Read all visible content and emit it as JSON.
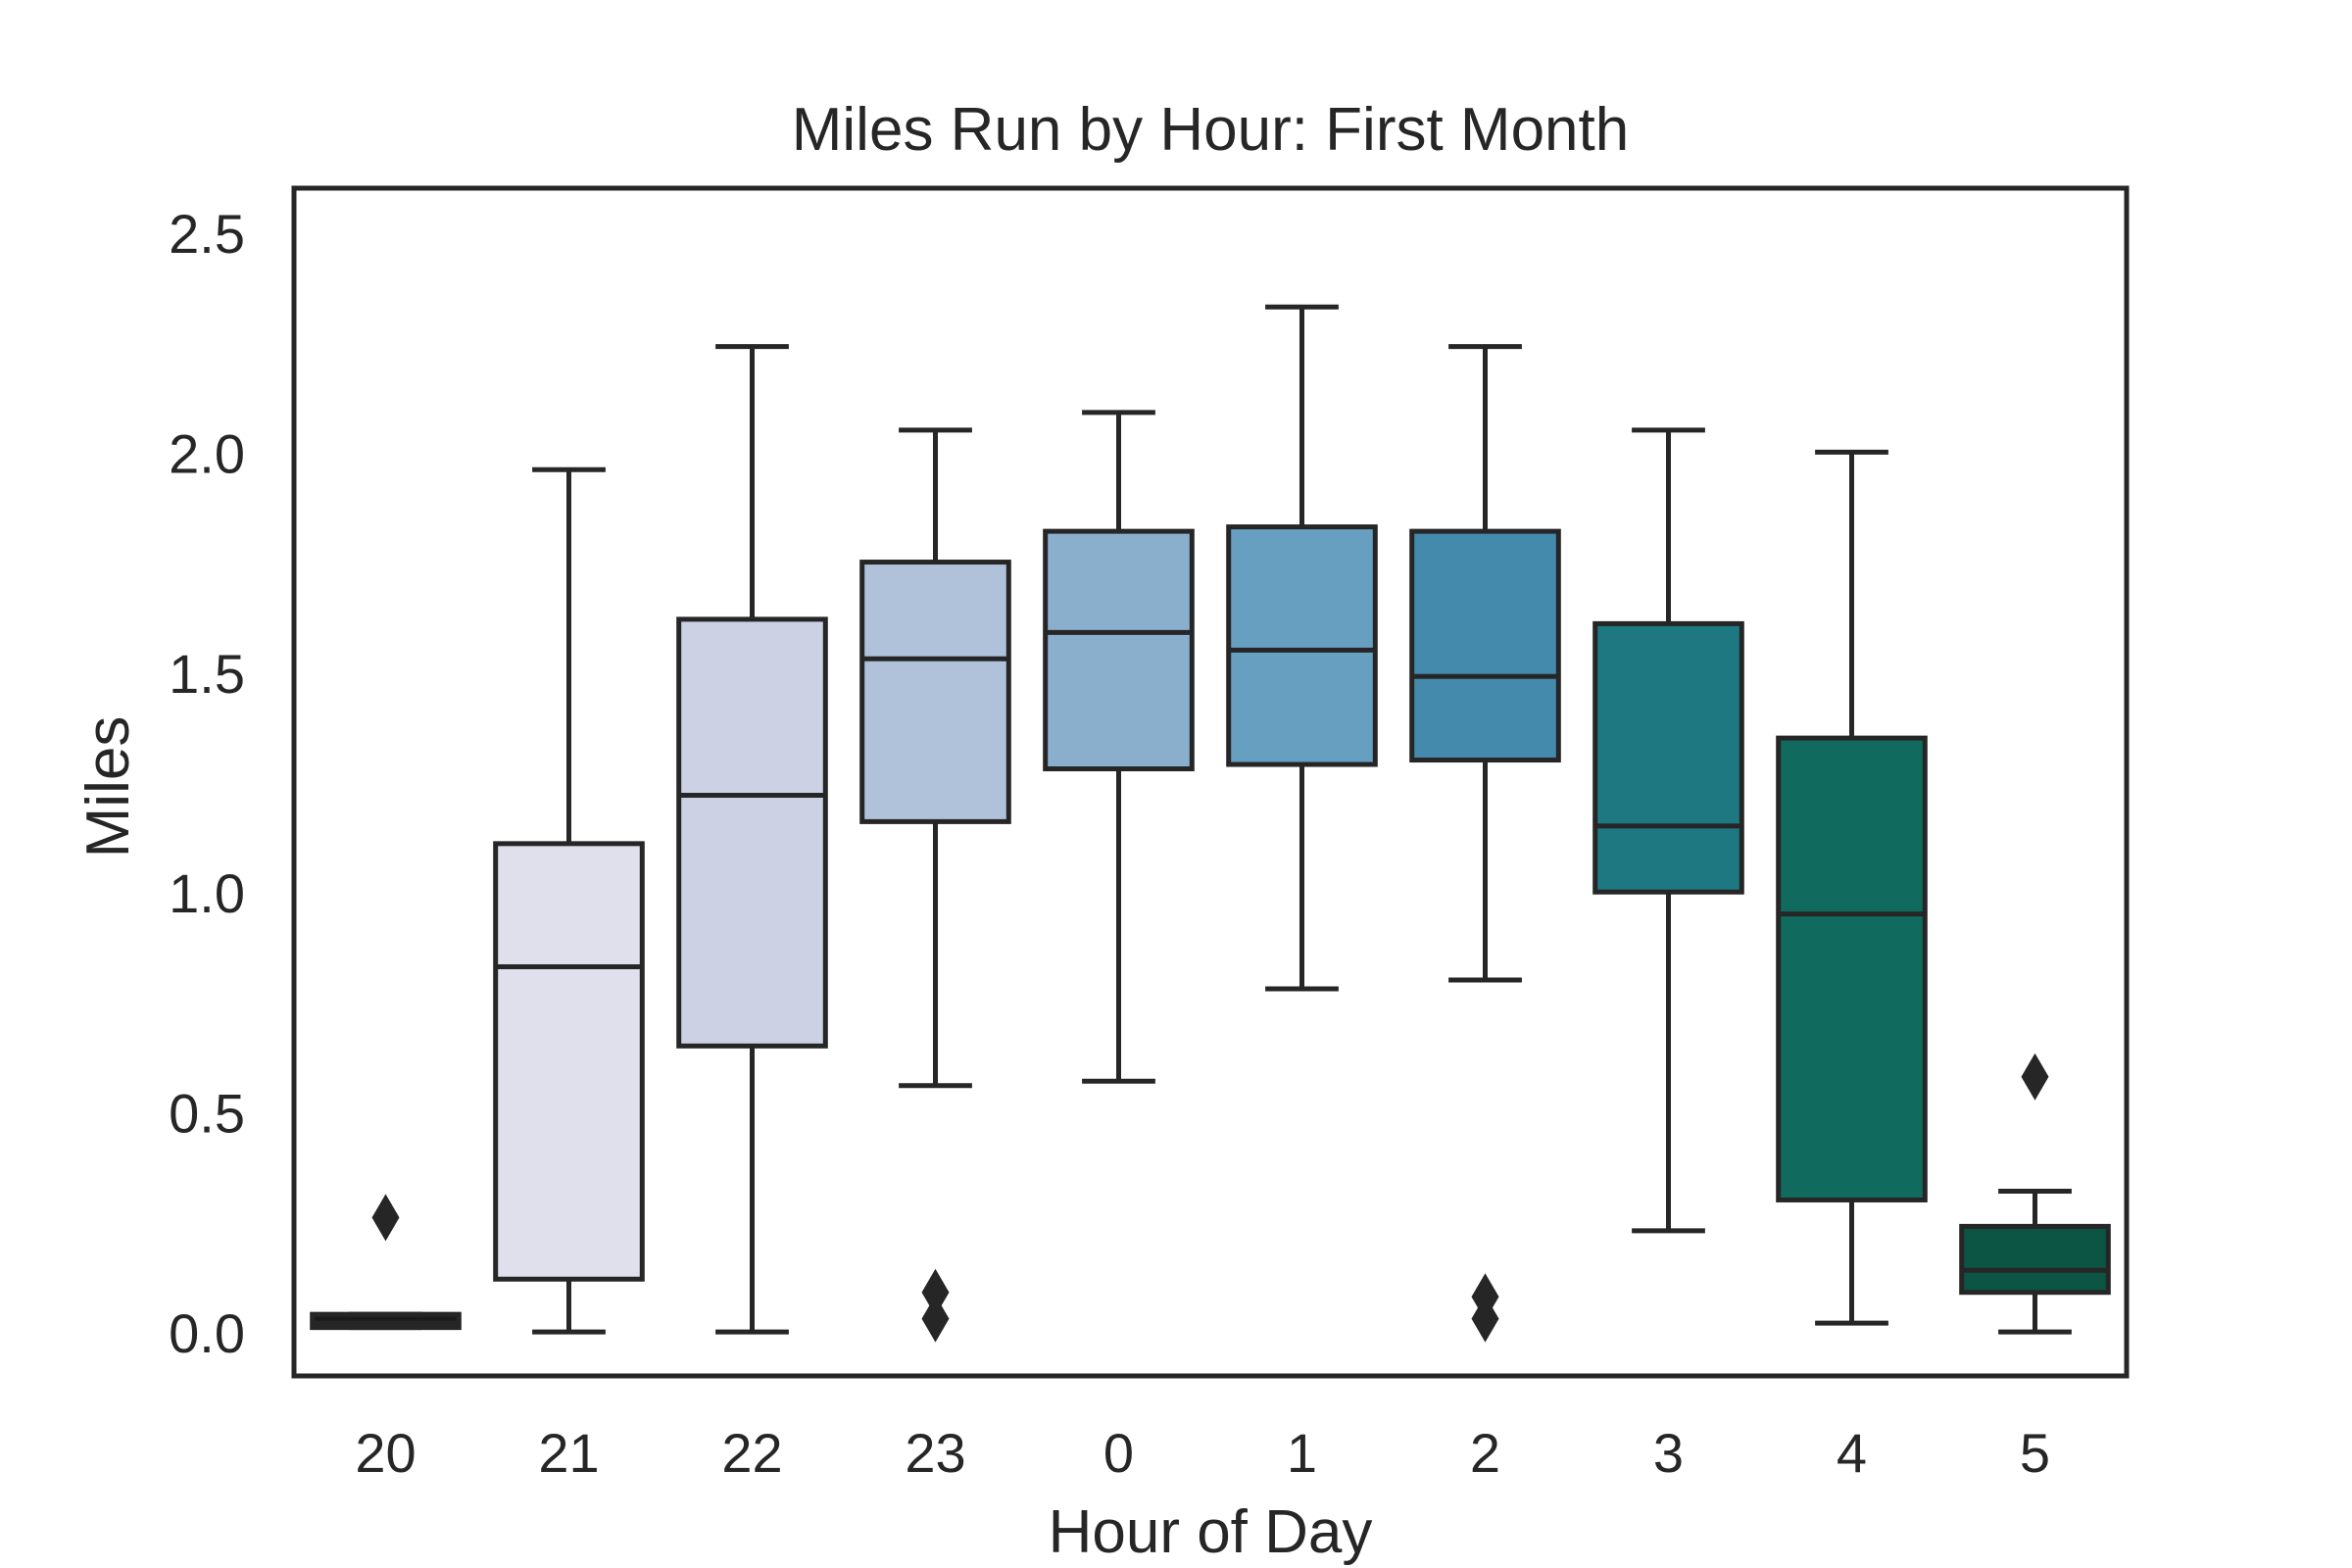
{
  "chart_data": {
    "type": "box",
    "title": "Miles Run by Hour: First Month",
    "xlabel": "Hour of Day",
    "ylabel": "Miles",
    "ylim": [
      -0.1,
      2.6
    ],
    "yticks": [
      "0.0",
      "0.5",
      "1.0",
      "1.5",
      "2.0",
      "2.5"
    ],
    "ytick_values": [
      0.0,
      0.5,
      1.0,
      1.5,
      2.0,
      2.5
    ],
    "grid": false,
    "categories": [
      "20",
      "21",
      "22",
      "23",
      "0",
      "1",
      "2",
      "3",
      "4",
      "5"
    ],
    "boxes": [
      {
        "category": "20",
        "whisker_low": 0.01,
        "q1": 0.01,
        "median": 0.02,
        "q3": 0.04,
        "whisker_high": 0.04,
        "outliers": [
          0.26
        ],
        "color": "#1a1a1a"
      },
      {
        "category": "21",
        "whisker_low": 0.0,
        "q1": 0.12,
        "median": 0.83,
        "q3": 1.11,
        "whisker_high": 1.96,
        "outliers": [],
        "color": "#e0dfec"
      },
      {
        "category": "22",
        "whisker_low": 0.0,
        "q1": 0.65,
        "median": 1.22,
        "q3": 1.62,
        "whisker_high": 2.24,
        "outliers": [],
        "color": "#ccd1e3"
      },
      {
        "category": "23",
        "whisker_low": 0.56,
        "q1": 1.16,
        "median": 1.53,
        "q3": 1.75,
        "whisker_high": 2.05,
        "outliers": [
          0.03,
          0.09
        ],
        "color": "#b0c1da"
      },
      {
        "category": "0",
        "whisker_low": 0.57,
        "q1": 1.28,
        "median": 1.59,
        "q3": 1.82,
        "whisker_high": 2.09,
        "outliers": [],
        "color": "#8aafcd"
      },
      {
        "category": "1",
        "whisker_low": 0.78,
        "q1": 1.29,
        "median": 1.55,
        "q3": 1.83,
        "whisker_high": 2.33,
        "outliers": [],
        "color": "#669fc0"
      },
      {
        "category": "2",
        "whisker_low": 0.8,
        "q1": 1.3,
        "median": 1.49,
        "q3": 1.82,
        "whisker_high": 2.24,
        "outliers": [
          0.03,
          0.08
        ],
        "color": "#448aad"
      },
      {
        "category": "3",
        "whisker_low": 0.23,
        "q1": 1.0,
        "median": 1.15,
        "q3": 1.61,
        "whisker_high": 2.05,
        "outliers": [],
        "color": "#1d7882"
      },
      {
        "category": "4",
        "whisker_low": 0.02,
        "q1": 0.3,
        "median": 0.95,
        "q3": 1.35,
        "whisker_high": 2.0,
        "outliers": [],
        "color": "#116a5e"
      },
      {
        "category": "5",
        "whisker_low": 0.0,
        "q1": 0.09,
        "median": 0.14,
        "q3": 0.24,
        "whisker_high": 0.32,
        "outliers": [
          0.58
        ],
        "color": "#0c5444"
      }
    ]
  }
}
